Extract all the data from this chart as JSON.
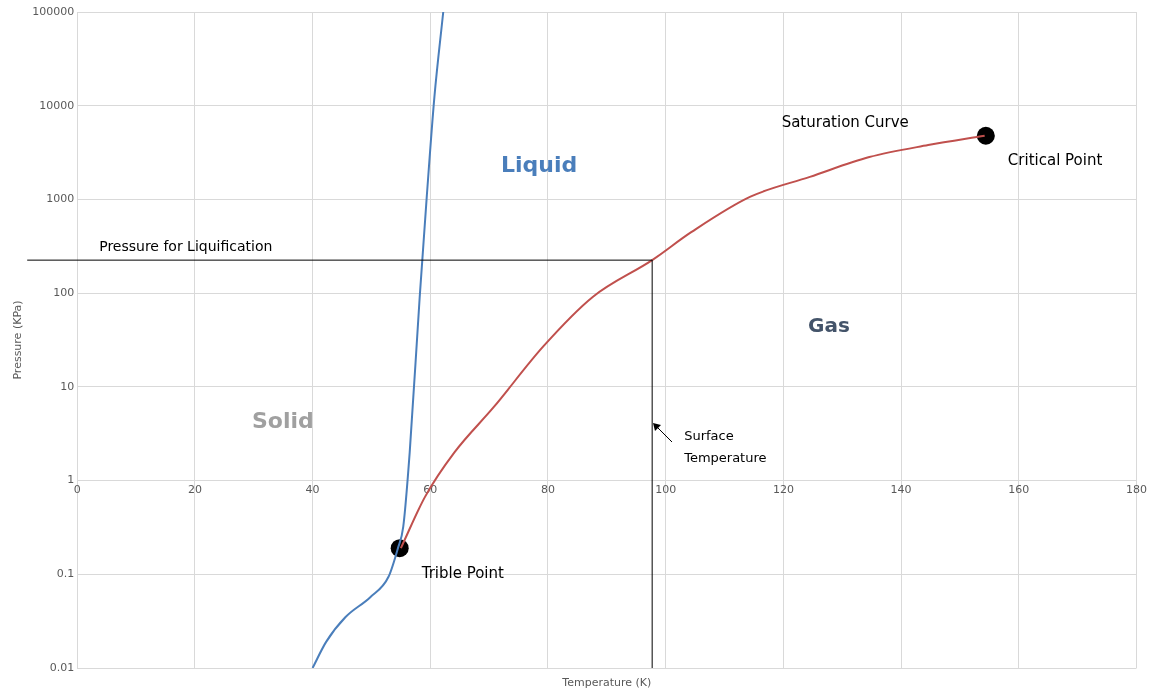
{
  "chart_data": {
    "type": "line",
    "xlabel": "Temperature (K)",
    "ylabel": "Pressure (KPa)",
    "log": "y",
    "grid": true,
    "legend": false,
    "marker": "none",
    "line_style": "solid",
    "xlim": [
      0,
      180
    ],
    "xticks": [
      0,
      20,
      40,
      60,
      80,
      100,
      120,
      140,
      160,
      180
    ],
    "ylim": [
      0.01,
      100000
    ],
    "yticks": [
      0.01,
      0.1,
      1,
      10,
      100,
      1000,
      10000,
      100000
    ],
    "series": [
      {
        "color": "#4a7ebb",
        "x": [
          40,
          42.3,
          45.6,
          49.8,
          52.9,
          54.5,
          55.4,
          56.5,
          58.2,
          59.4,
          60.7,
          62.2
        ],
        "values": [
          0.01,
          0.019,
          0.035,
          0.057,
          0.094,
          0.19,
          0.32,
          2,
          91,
          1070,
          12400,
          100000
        ]
      },
      {
        "color": "#c0504d",
        "x": [
          55,
          59.1,
          64.1,
          70.8,
          79.2,
          87.6,
          97.7,
          104.4,
          114.4,
          124.5,
          134.6,
          144.6,
          154.2
        ],
        "values": [
          0.19,
          0.67,
          2,
          6.1,
          27,
          91,
          225,
          450,
          1070,
          1740,
          2830,
          3800,
          4780
        ]
      },
      {
        "type": "scatter",
        "color": "#000000",
        "marker": "circle",
        "x": [
          54.8,
          154.4
        ],
        "values": [
          0.19,
          4780
        ]
      }
    ],
    "ref_lines": [
      {
        "axis": "y",
        "value": 225,
        "label": "Pressure for Liquification",
        "color": "#000000"
      },
      {
        "axis": "x",
        "value": 97.7,
        "color": "#000000"
      }
    ],
    "annotations": [
      "Saturation Curve",
      "Liquid",
      "Gas",
      "Solid",
      {
        "text": "Trible Point",
        "x": 54.8,
        "y": 0.19
      },
      {
        "text": "Critical Point",
        "x": 154.4,
        "y": 4780
      },
      {
        "text": "Surface Temperature",
        "x": 97.7,
        "y": 4
      }
    ]
  }
}
